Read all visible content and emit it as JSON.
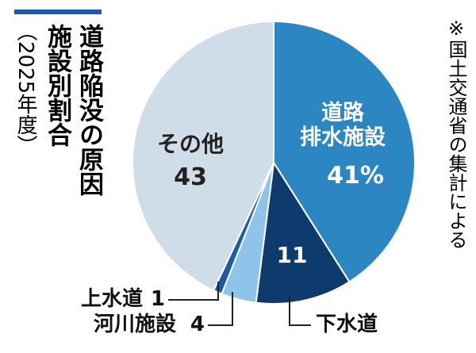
{
  "chart_data": {
    "type": "pie",
    "title_lines": [
      "道路陥没の原因",
      "施設別割合"
    ],
    "subtitle": "（2025年度）",
    "note": "※国土交通省の集計による",
    "categories": [
      "道路\n排水施設",
      "下水道",
      "河川施設",
      "上水道",
      "その他"
    ],
    "values": [
      41,
      11,
      4,
      1,
      43
    ],
    "value_labels": [
      "41%",
      "11",
      "4",
      "1",
      "43"
    ],
    "colors": [
      "#2b86c1",
      "#0e3b6d",
      "#8ec4e9",
      "#1c5ba7",
      "#cfdde9"
    ]
  }
}
